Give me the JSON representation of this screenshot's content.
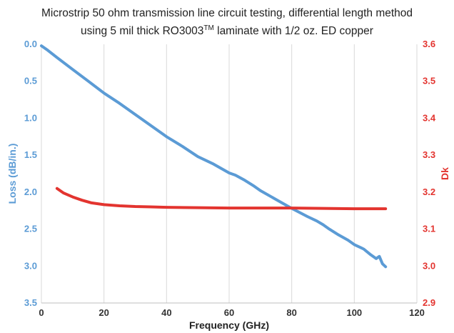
{
  "chart_data": {
    "type": "line",
    "title_line1": "Microstrip 50 ohm transmission line circuit testing, differential length method",
    "title_line2_pre": "using 5 mil thick RO3003",
    "title_line2_tm": "TM",
    "title_line2_post": " laminate with 1/2 oz. ED copper",
    "xlabel": "Frequency (GHz)",
    "ylabel_left": "Loss (dB/in.)",
    "ylabel_right": "Dk",
    "xlim": [
      0,
      120
    ],
    "ylim_left": [
      0,
      3.5
    ],
    "ylim_left_inverted": true,
    "ylim_right": [
      2.9,
      3.6
    ],
    "x_ticks": [
      "0",
      "20",
      "40",
      "60",
      "80",
      "100",
      "120"
    ],
    "y_left_ticks": [
      "0.0",
      "0.5",
      "1.0",
      "1.5",
      "2.0",
      "2.5",
      "3.0",
      "3.5"
    ],
    "y_right_ticks": [
      "3.6",
      "3.5",
      "3.4",
      "3.3",
      "3.2",
      "3.1",
      "3.0",
      "2.9"
    ],
    "grid": "vertical",
    "series": [
      {
        "axis": "left",
        "color": "#5b9bd5",
        "x": [
          0,
          2,
          5,
          10,
          15,
          20,
          25,
          30,
          35,
          40,
          45,
          50,
          55,
          60,
          62,
          65,
          68,
          70,
          75,
          80,
          85,
          88,
          90,
          92,
          95,
          98,
          100,
          103,
          105,
          107,
          108,
          109,
          110
        ],
        "y": [
          0.02,
          0.08,
          0.18,
          0.34,
          0.5,
          0.66,
          0.8,
          0.95,
          1.1,
          1.25,
          1.38,
          1.52,
          1.62,
          1.74,
          1.77,
          1.84,
          1.92,
          1.98,
          2.1,
          2.22,
          2.33,
          2.39,
          2.44,
          2.5,
          2.58,
          2.65,
          2.71,
          2.77,
          2.84,
          2.9,
          2.87,
          2.97,
          3.01
        ]
      },
      {
        "axis": "right",
        "color": "#e3342f",
        "x": [
          5,
          7,
          10,
          13,
          16,
          20,
          25,
          30,
          35,
          40,
          50,
          60,
          70,
          80,
          90,
          100,
          105,
          110
        ],
        "y": [
          3.21,
          3.198,
          3.187,
          3.178,
          3.171,
          3.166,
          3.163,
          3.161,
          3.16,
          3.159,
          3.158,
          3.157,
          3.157,
          3.157,
          3.156,
          3.155,
          3.155,
          3.155
        ]
      }
    ]
  }
}
